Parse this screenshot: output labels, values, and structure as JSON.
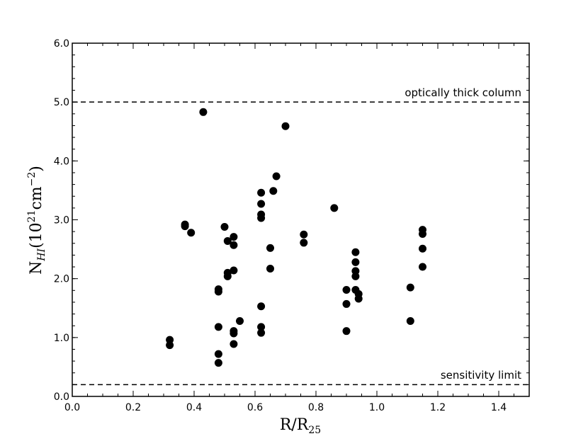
{
  "chart_data": {
    "type": "scatter",
    "xlabel": "R/R",
    "xlabel_sub": "25",
    "ylabel_main": "N",
    "ylabel_sub": "HI",
    "ylabel_unit": "(10",
    "ylabel_exp": "21",
    "ylabel_unit2": "cm",
    "ylabel_exp2": "−2",
    "ylabel_close": ")",
    "xlim": [
      0.0,
      1.5
    ],
    "ylim": [
      0.0,
      6.0
    ],
    "xticks": [
      "0.0",
      "0.2",
      "0.4",
      "0.6",
      "0.8",
      "1.0",
      "1.2",
      "1.4"
    ],
    "yticks": [
      "0.0",
      "1.0",
      "2.0",
      "3.0",
      "4.0",
      "5.0",
      "6.0"
    ],
    "grid": false,
    "reference_lines": [
      {
        "y": 5.0,
        "label": "optically thick column",
        "style": "dashed"
      },
      {
        "y": 0.2,
        "label": "sensitivity limit",
        "style": "dashed"
      }
    ],
    "marker_color": "#000000",
    "points": [
      [
        0.32,
        0.96
      ],
      [
        0.32,
        0.87
      ],
      [
        0.37,
        2.92
      ],
      [
        0.37,
        2.89
      ],
      [
        0.39,
        2.78
      ],
      [
        0.43,
        4.83
      ],
      [
        0.48,
        1.82
      ],
      [
        0.48,
        1.78
      ],
      [
        0.48,
        1.18
      ],
      [
        0.48,
        0.72
      ],
      [
        0.48,
        0.57
      ],
      [
        0.5,
        2.88
      ],
      [
        0.51,
        2.64
      ],
      [
        0.51,
        2.1
      ],
      [
        0.51,
        2.04
      ],
      [
        0.53,
        2.71
      ],
      [
        0.53,
        2.57
      ],
      [
        0.53,
        2.14
      ],
      [
        0.53,
        1.11
      ],
      [
        0.53,
        1.07
      ],
      [
        0.53,
        0.89
      ],
      [
        0.55,
        1.28
      ],
      [
        0.62,
        3.46
      ],
      [
        0.62,
        3.27
      ],
      [
        0.62,
        3.09
      ],
      [
        0.62,
        3.03
      ],
      [
        0.62,
        1.53
      ],
      [
        0.62,
        1.18
      ],
      [
        0.62,
        1.08
      ],
      [
        0.65,
        2.52
      ],
      [
        0.65,
        2.17
      ],
      [
        0.66,
        3.49
      ],
      [
        0.67,
        3.74
      ],
      [
        0.7,
        4.59
      ],
      [
        0.76,
        2.75
      ],
      [
        0.76,
        2.61
      ],
      [
        0.86,
        3.2
      ],
      [
        0.9,
        1.81
      ],
      [
        0.9,
        1.57
      ],
      [
        0.9,
        1.11
      ],
      [
        0.93,
        2.45
      ],
      [
        0.93,
        2.28
      ],
      [
        0.93,
        2.13
      ],
      [
        0.93,
        2.04
      ],
      [
        0.93,
        1.81
      ],
      [
        0.94,
        1.74
      ],
      [
        0.94,
        1.66
      ],
      [
        1.11,
        1.85
      ],
      [
        1.11,
        1.28
      ],
      [
        1.15,
        2.83
      ],
      [
        1.15,
        2.76
      ],
      [
        1.15,
        2.51
      ],
      [
        1.15,
        2.2
      ]
    ]
  }
}
